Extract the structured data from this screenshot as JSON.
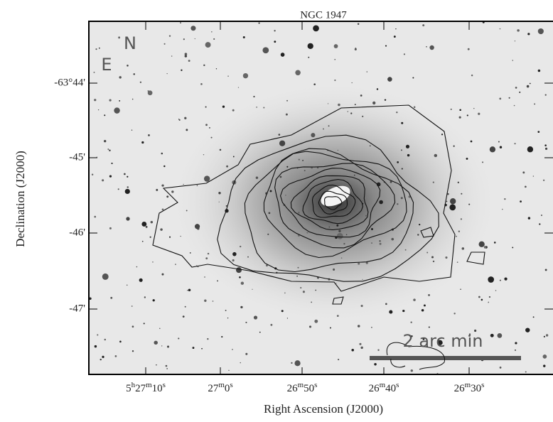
{
  "title": "NGC 1947",
  "x_axis": {
    "label": "Right Ascension (J2000)",
    "ticks": [
      [
        "5",
        "h",
        "27",
        "m",
        "10",
        "s"
      ],
      [
        "27",
        "m",
        "0",
        "s"
      ],
      [
        "26",
        "m",
        "50",
        "s"
      ],
      [
        "26",
        "m",
        "40",
        "s"
      ],
      [
        "26",
        "m",
        "30",
        "s"
      ]
    ]
  },
  "y_axis": {
    "label": "Declination (J2000)",
    "ticks": [
      "-63°44'",
      "-45'",
      "-46'",
      "-47'"
    ]
  },
  "annotations": {
    "east": "E",
    "north": "N",
    "scale": "2 arc min"
  }
}
